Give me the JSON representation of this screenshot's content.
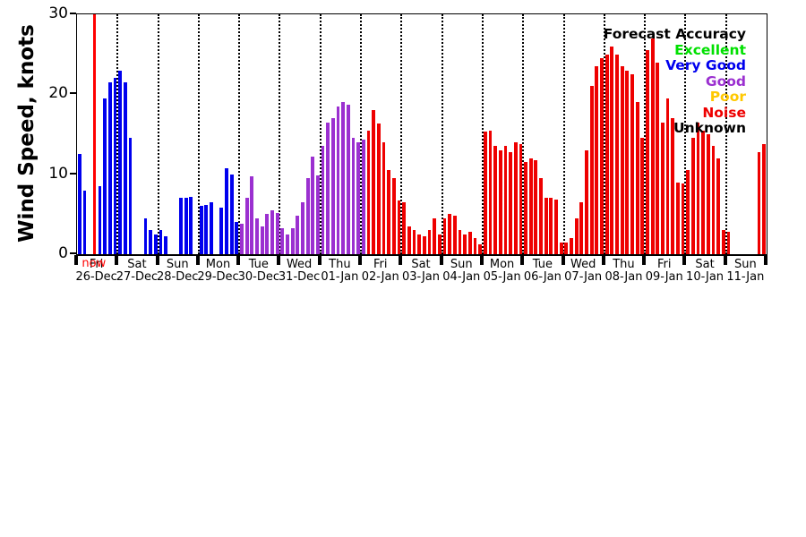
{
  "y_axis": {
    "title": "Wind Speed, knots",
    "ticks": [
      "0",
      "10",
      "20",
      "30"
    ]
  },
  "legend": {
    "title": "Forecast Accuracy",
    "entries": [
      {
        "label": "Excellent",
        "color": "#00e000"
      },
      {
        "label": "Very Good",
        "color": "#0000ee"
      },
      {
        "label": "Good",
        "color": "#9b30d0"
      },
      {
        "label": "Poor",
        "color": "#ffc800"
      },
      {
        "label": "Noise",
        "color": "#ee0000"
      },
      {
        "label": "Unknown",
        "color": "#000000"
      }
    ]
  },
  "now_marker": {
    "label": "now",
    "color": "#ff0000",
    "day_index": 0,
    "slot": 3
  },
  "chart_data": {
    "type": "bar",
    "title": "",
    "xlabel": "",
    "ylabel": "Wind Speed, knots",
    "ylim": [
      0,
      30
    ],
    "grid": "vertical-dotted-day-separators",
    "legend_position": "top-right",
    "slots_per_day": 8,
    "accuracy_colors": {
      "excellent": "#00e000",
      "very_good": "#0000ee",
      "good": "#9b30d0",
      "poor": "#ffc800",
      "noise": "#ee0000",
      "unknown": "#000000"
    },
    "days": [
      {
        "dow": "Fri",
        "date": "26-Dec",
        "acc": "very_good",
        "values": [
          12.5,
          8,
          null,
          null,
          8.5,
          19.5,
          21.5,
          22
        ]
      },
      {
        "dow": "Sat",
        "date": "27-Dec",
        "acc": "very_good",
        "values": [
          23,
          21.5,
          14.5,
          null,
          null,
          4.5,
          3,
          2.5
        ]
      },
      {
        "dow": "Sun",
        "date": "28-Dec",
        "acc": "very_good",
        "values": [
          3,
          2.2,
          null,
          null,
          7,
          7,
          7.2,
          null
        ]
      },
      {
        "dow": "Mon",
        "date": "29-Dec",
        "acc": "very_good",
        "values": [
          6,
          6.2,
          6.5,
          null,
          5.8,
          10.8,
          10,
          4
        ]
      },
      {
        "dow": "Tue",
        "date": "30-Dec",
        "acc": "good",
        "values": [
          3.8,
          7,
          9.7,
          4.5,
          3.5,
          5,
          5.5,
          5.2
        ]
      },
      {
        "dow": "Wed",
        "date": "31-Dec",
        "acc": "good",
        "values": [
          3.2,
          2.5,
          3.3,
          4.8,
          6.5,
          9.5,
          12.2,
          9.8
        ]
      },
      {
        "dow": "Thu",
        "date": "01-Jan",
        "acc": "good",
        "values": [
          13.5,
          16.5,
          17,
          18.5,
          19,
          18.7,
          14.5,
          14
        ]
      },
      {
        "dow": "Fri",
        "date": "02-Jan",
        "acc": "noise",
        "acc_list": [
          "good",
          "noise",
          "noise",
          "noise",
          "noise",
          "noise",
          "noise",
          "noise"
        ],
        "values": [
          14.3,
          15.5,
          18,
          16.3,
          14,
          10.5,
          9.5,
          6.7
        ]
      },
      {
        "dow": "Sat",
        "date": "03-Jan",
        "acc": "noise",
        "values": [
          6.5,
          3.5,
          3,
          2.5,
          2.2,
          3,
          4.5,
          2.5
        ]
      },
      {
        "dow": "Sun",
        "date": "04-Jan",
        "acc": "noise",
        "values": [
          4.5,
          5,
          4.8,
          3,
          2.5,
          2.8,
          2,
          1.2
        ]
      },
      {
        "dow": "Mon",
        "date": "05-Jan",
        "acc": "noise",
        "values": [
          15.3,
          15.5,
          13.5,
          13,
          13.5,
          12.8,
          14,
          13.8
        ]
      },
      {
        "dow": "Tue",
        "date": "06-Jan",
        "acc": "noise",
        "values": [
          11.5,
          12,
          11.8,
          9.5,
          7,
          7,
          6.8,
          1.5
        ]
      },
      {
        "dow": "Wed",
        "date": "07-Jan",
        "acc": "noise",
        "values": [
          1.5,
          2,
          4.5,
          6.5,
          13,
          21,
          23.5,
          24.5
        ]
      },
      {
        "dow": "Thu",
        "date": "08-Jan",
        "acc": "noise",
        "values": [
          25,
          26,
          25,
          23.5,
          23,
          22.5,
          19,
          14.5
        ]
      },
      {
        "dow": "Fri",
        "date": "09-Jan",
        "acc": "noise",
        "values": [
          25.5,
          27,
          24,
          16.5,
          19.5,
          17,
          9,
          8.8
        ]
      },
      {
        "dow": "Sat",
        "date": "10-Jan",
        "acc": "noise",
        "values": [
          10.5,
          14.5,
          16.5,
          15.5,
          15,
          13.5,
          12,
          3
        ]
      },
      {
        "dow": "Sun",
        "date": "11-Jan",
        "acc": "noise",
        "values": [
          2.8,
          null,
          null,
          null,
          null,
          null,
          12.8,
          13.8
        ]
      }
    ]
  }
}
